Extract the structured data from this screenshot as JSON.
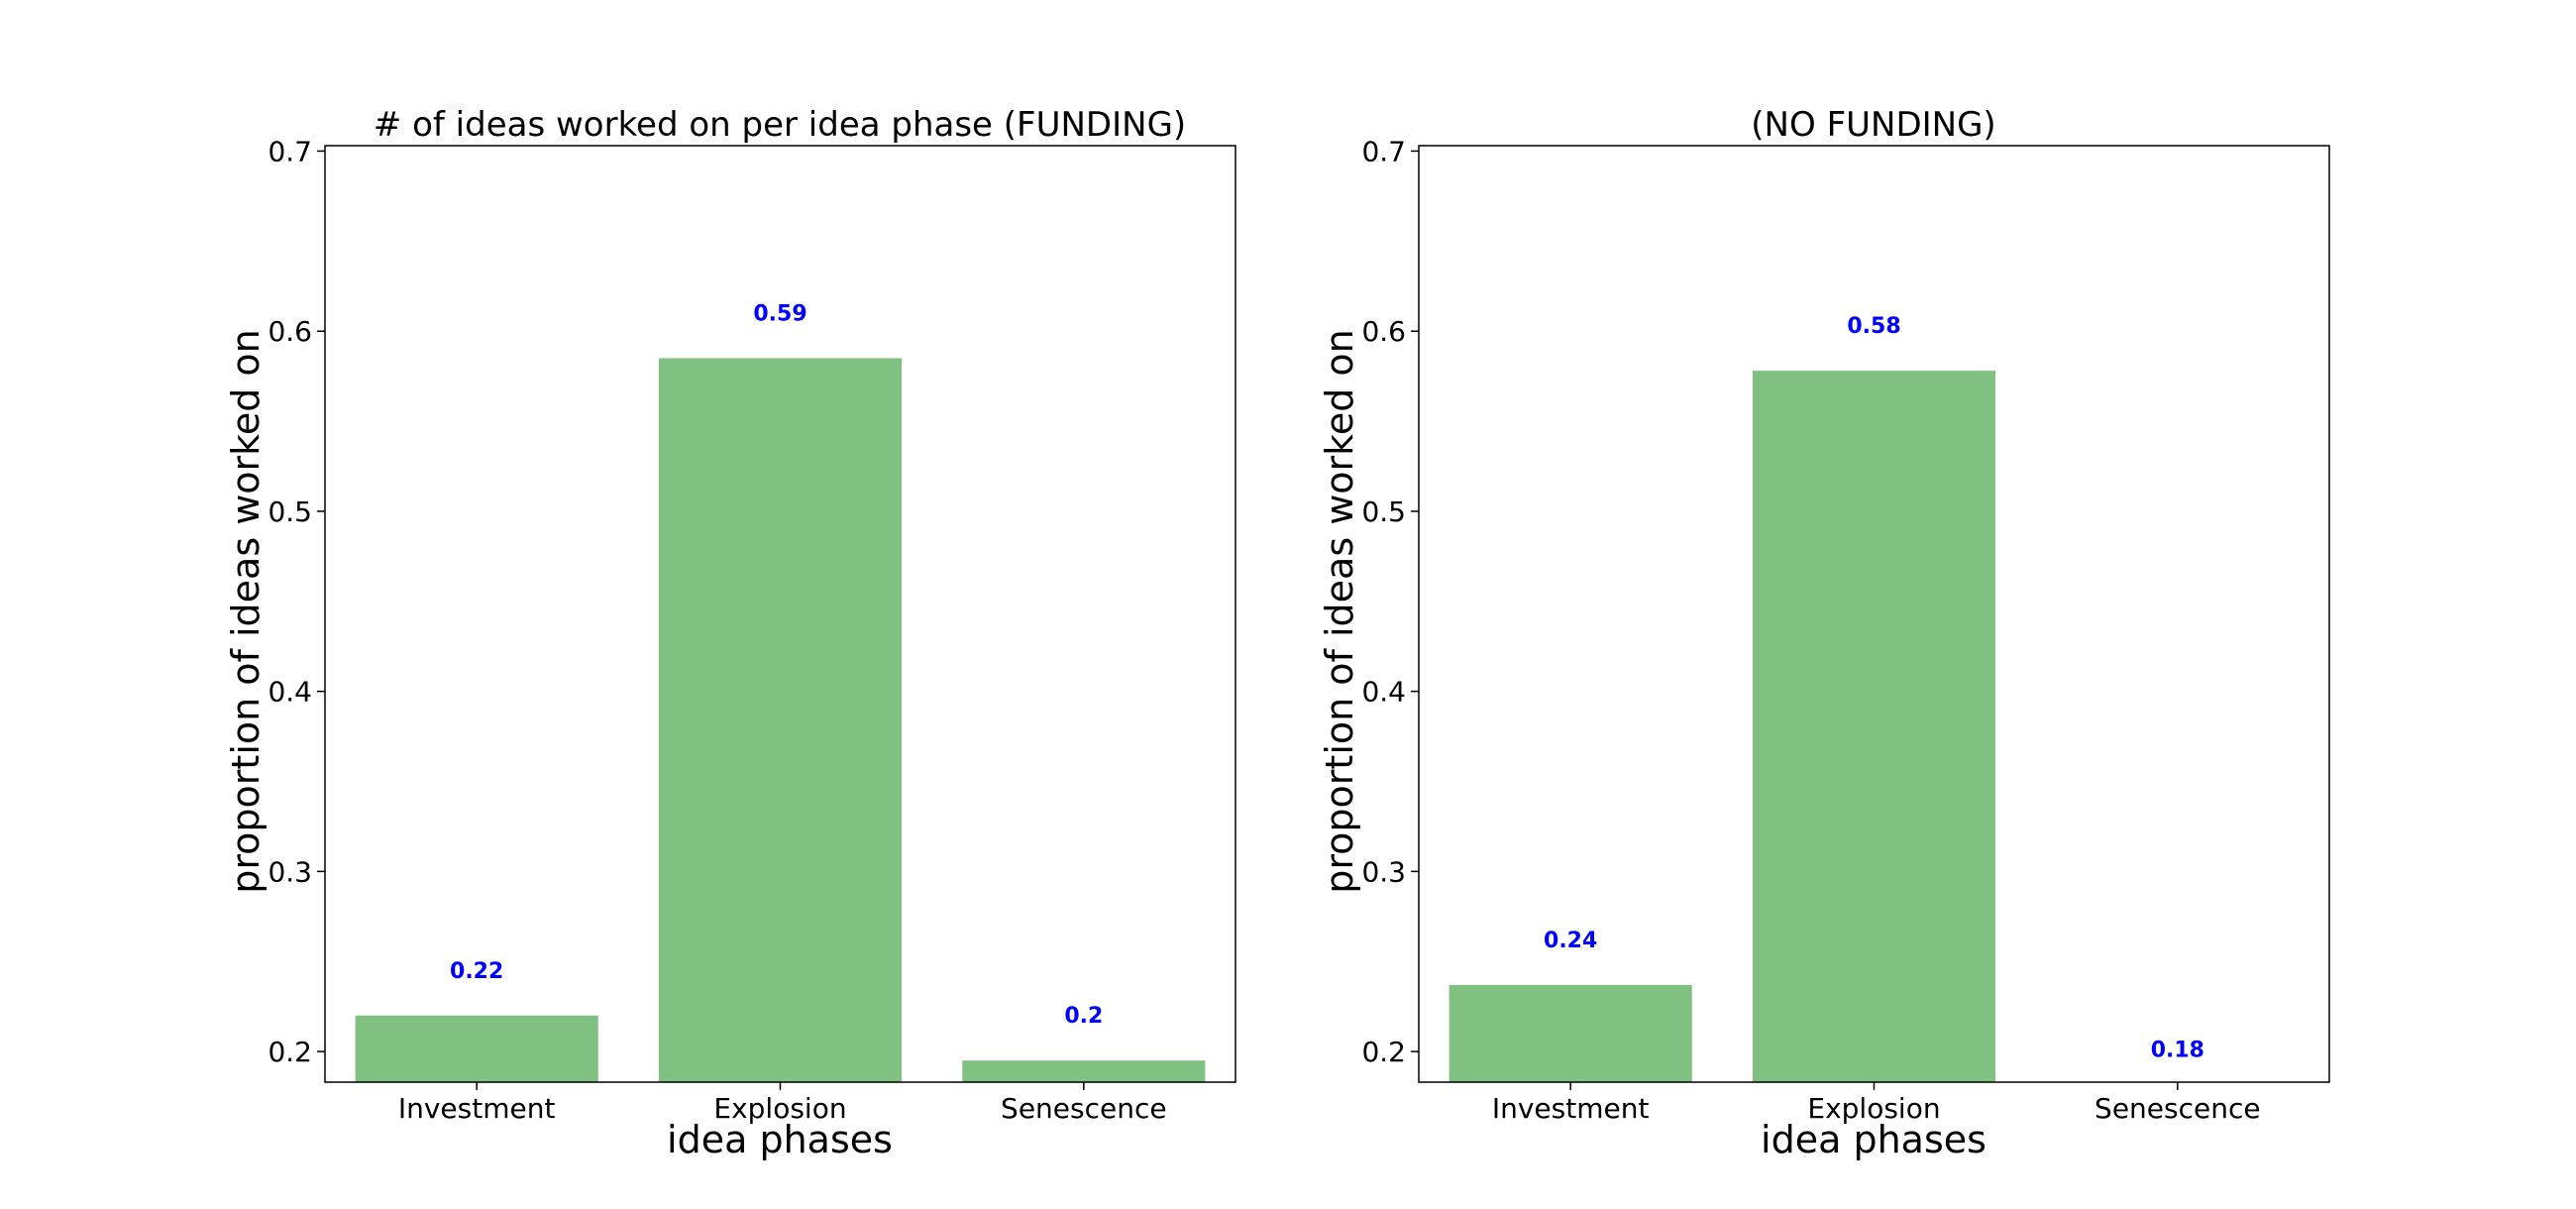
{
  "colors": {
    "bar": "#80c080",
    "data_label": "#0000ff",
    "frame": "#000000"
  },
  "chart_data": [
    {
      "type": "bar",
      "title": "# of ideas worked on per idea phase (FUNDING)",
      "xlabel": "idea phases",
      "ylabel": "proportion of ideas worked on",
      "categories": [
        "Investment",
        "Explosion",
        "Senescence"
      ],
      "values": [
        0.22,
        0.585,
        0.195
      ],
      "data_labels": [
        "0.22",
        "0.59",
        "0.2"
      ],
      "ylim": [
        0.183,
        0.703
      ],
      "yticks": [
        0.2,
        0.3,
        0.4,
        0.5,
        0.6,
        0.7
      ],
      "ytick_labels": [
        "0.2",
        "0.3",
        "0.4",
        "0.5",
        "0.6",
        "0.7"
      ],
      "grid": false,
      "legend": "none"
    },
    {
      "type": "bar",
      "title": "(NO FUNDING)",
      "xlabel": "idea phases",
      "ylabel": "proportion of ideas worked on",
      "categories": [
        "Investment",
        "Explosion",
        "Senescence"
      ],
      "values": [
        0.237,
        0.578,
        0.176
      ],
      "data_labels": [
        "0.24",
        "0.58",
        "0.18"
      ],
      "ylim": [
        0.183,
        0.703
      ],
      "yticks": [
        0.2,
        0.3,
        0.4,
        0.5,
        0.6,
        0.7
      ],
      "ytick_labels": [
        "0.2",
        "0.3",
        "0.4",
        "0.5",
        "0.6",
        "0.7"
      ],
      "grid": false,
      "legend": "none"
    }
  ]
}
